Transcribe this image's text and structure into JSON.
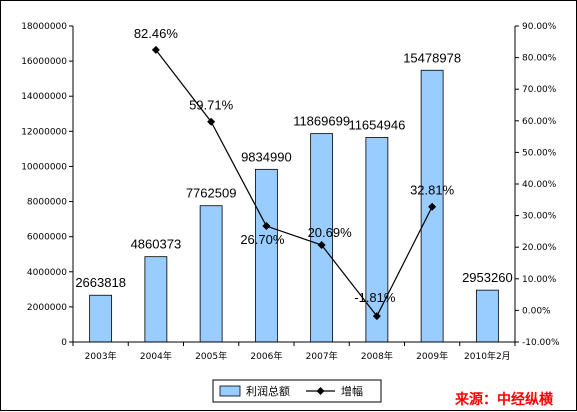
{
  "chart_data": {
    "type": "bar",
    "categories": [
      "2003年",
      "2004年",
      "2005年",
      "2006年",
      "2007年",
      "2008年",
      "2009年",
      "2010年2月"
    ],
    "series": [
      {
        "name": "利润总额",
        "type": "bar",
        "axis": "left",
        "values": [
          2663818,
          4860373,
          7762509,
          9834990,
          11869699,
          11654946,
          15478978,
          2953260
        ],
        "labels": [
          "2663818",
          "4860373",
          "7762509",
          "9834990",
          "11869699",
          "11654946",
          "15478978",
          "2953260"
        ],
        "color": "#99ccff"
      },
      {
        "name": "增幅",
        "type": "line",
        "axis": "right",
        "values": [
          null,
          82.46,
          59.71,
          26.7,
          20.69,
          -1.81,
          32.81,
          null
        ],
        "labels": [
          "",
          "82.46%",
          "59.71%",
          "26.70%",
          "20.69%",
          "-1.81%",
          "32.81%",
          ""
        ],
        "color": "#000000"
      }
    ],
    "y_left": {
      "min": 0,
      "max": 18000000,
      "ticks": [
        "0",
        "2000000",
        "4000000",
        "6000000",
        "8000000",
        "10000000",
        "12000000",
        "14000000",
        "16000000",
        "18000000"
      ]
    },
    "y_right": {
      "min": -10,
      "max": 90,
      "ticks": [
        "-10.00%",
        "0.00%",
        "10.00%",
        "20.00%",
        "30.00%",
        "40.00%",
        "50.00%",
        "60.00%",
        "70.00%",
        "80.00%",
        "90.00%"
      ]
    },
    "grid": false,
    "legend_position": "bottom"
  },
  "source_text": "来源：中经纵横"
}
